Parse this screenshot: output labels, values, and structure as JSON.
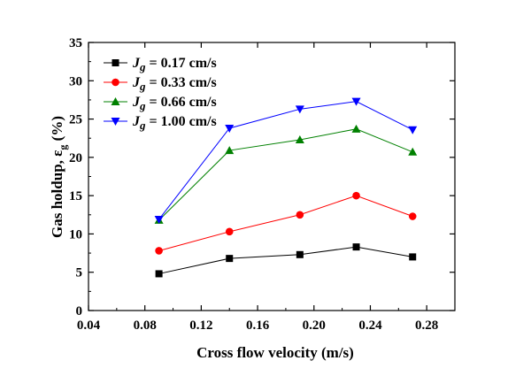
{
  "chart_data": {
    "type": "line",
    "title": "",
    "xlabel": "Cross flow velocity (m/s)",
    "ylabel": "Gas holdup,  εg (%)",
    "ylabel_main": "Gas holdup,  ε",
    "ylabel_sub": "g",
    "ylabel_unit": " (%)",
    "xlim": [
      0.04,
      0.3
    ],
    "ylim": [
      0,
      35
    ],
    "xticks": [
      0.04,
      0.08,
      0.12,
      0.16,
      0.2,
      0.24,
      0.28
    ],
    "xtick_labels": [
      "0.04",
      "0.08",
      "0.12",
      "0.16",
      "0.20",
      "0.24",
      "0.28"
    ],
    "yticks": [
      0,
      5,
      10,
      15,
      20,
      25,
      30,
      35
    ],
    "ytick_labels": [
      "0",
      "5",
      "10",
      "15",
      "20",
      "25",
      "30",
      "35"
    ],
    "grid": false,
    "legend_position": "top-left",
    "x": [
      0.09,
      0.14,
      0.19,
      0.23,
      0.27
    ],
    "series": [
      {
        "name": "Jg = 0.17 cm/s",
        "label_var": "J",
        "label_sub": "g",
        "label_rest": " = 0.17 cm/s",
        "color": "#000000",
        "marker": "square",
        "values": [
          4.8,
          6.8,
          7.3,
          8.3,
          7.0
        ]
      },
      {
        "name": "Jg = 0.33 cm/s",
        "label_var": "J",
        "label_sub": "g",
        "label_rest": " = 0.33 cm/s",
        "color": "#ff0000",
        "marker": "circle",
        "values": [
          7.8,
          10.3,
          12.5,
          15.0,
          12.3
        ]
      },
      {
        "name": "Jg = 0.66 cm/s",
        "label_var": "J",
        "label_sub": "g",
        "label_rest": " = 0.66 cm/s",
        "color": "#008000",
        "marker": "triangle-up",
        "values": [
          11.8,
          20.9,
          22.3,
          23.7,
          20.7
        ]
      },
      {
        "name": "Jg = 1.00 cm/s",
        "label_var": "J",
        "label_sub": "g",
        "label_rest": " = 1.00 cm/s",
        "color": "#0000ff",
        "marker": "triangle-down",
        "values": [
          11.9,
          23.8,
          26.3,
          27.3,
          23.6
        ]
      }
    ]
  }
}
